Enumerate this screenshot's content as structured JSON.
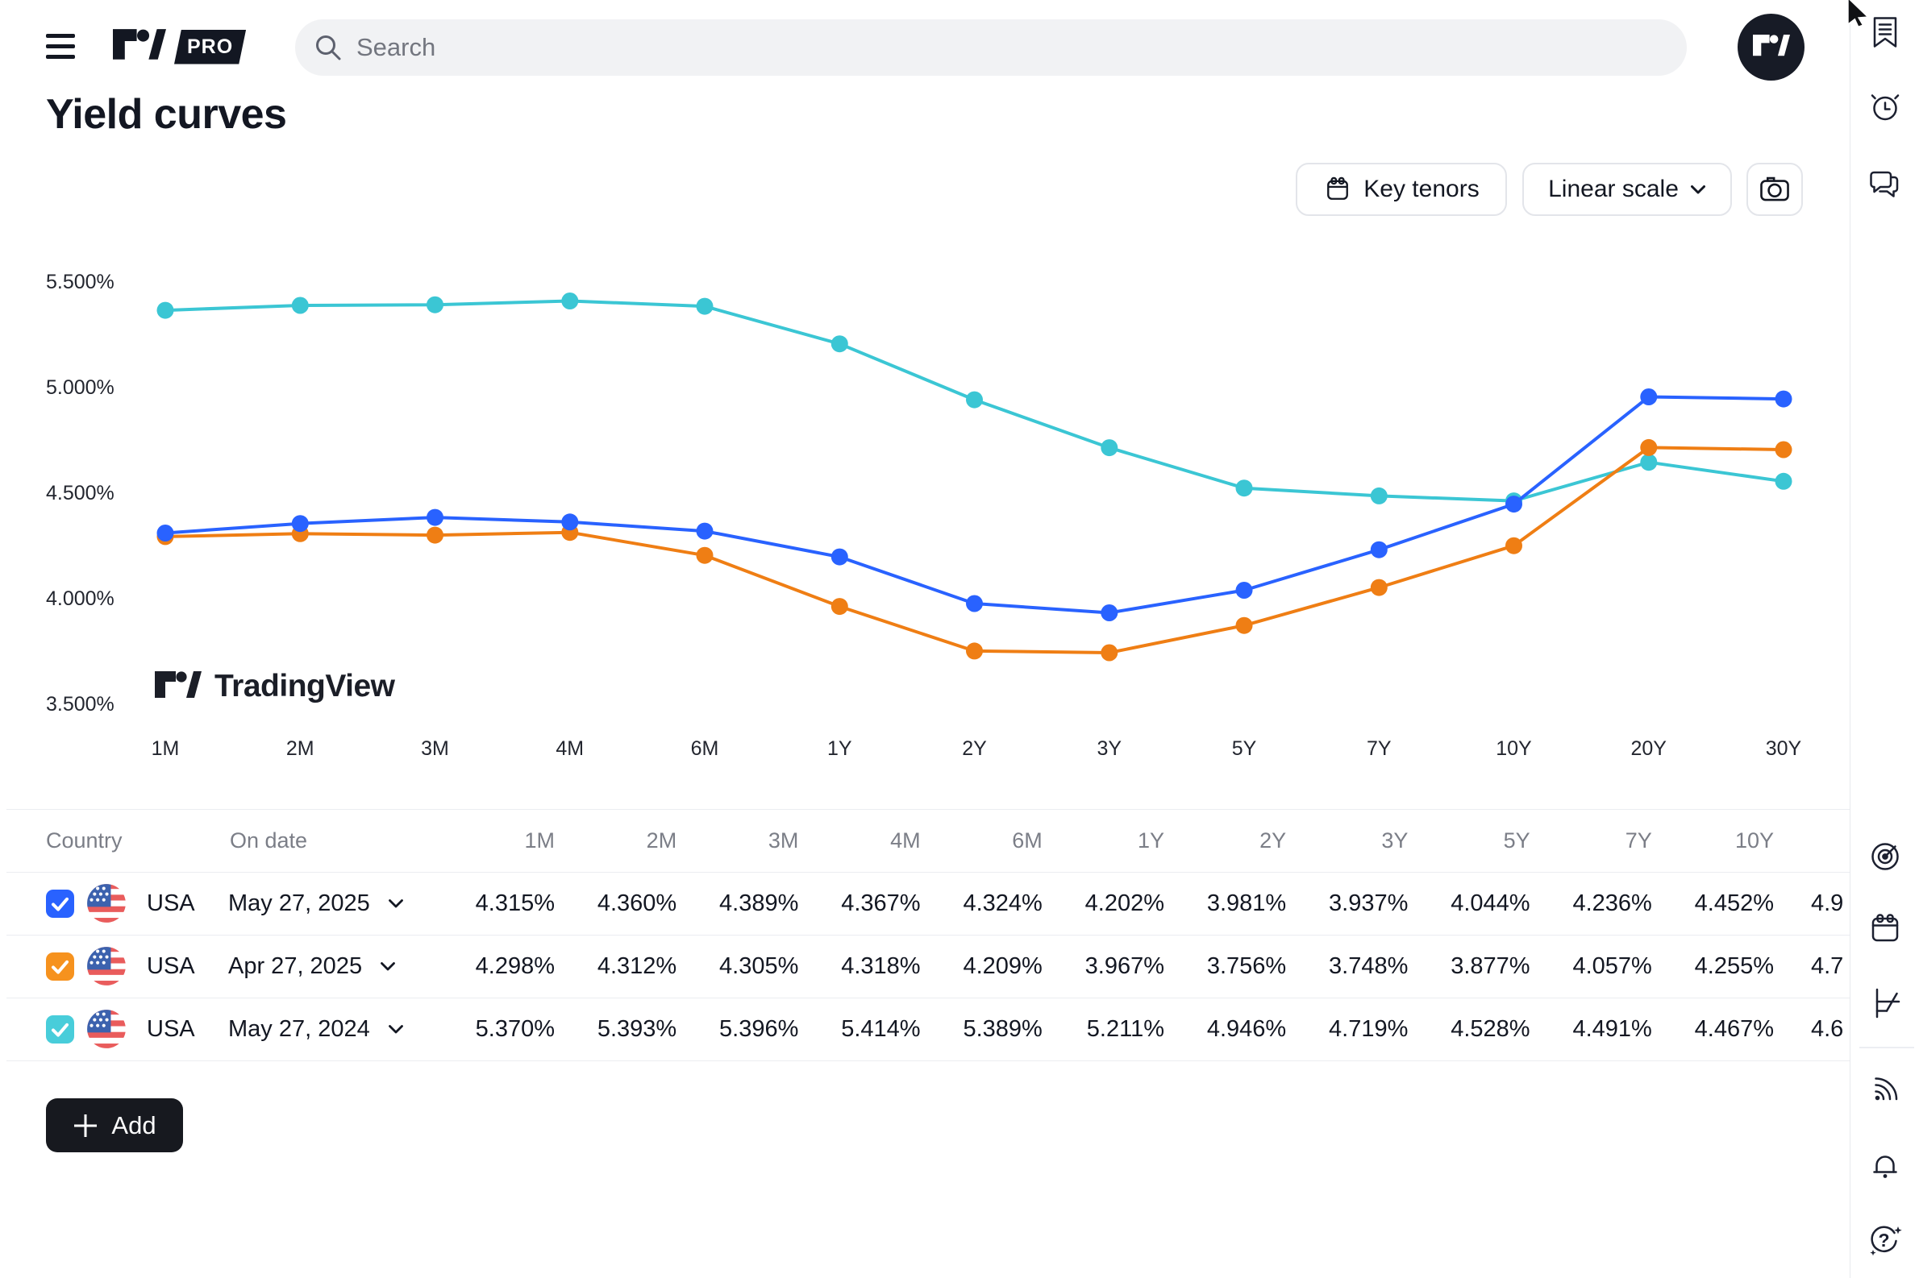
{
  "topbar": {
    "pro_label": "PRO",
    "search_placeholder": "Search"
  },
  "page": {
    "title": "Yield curves"
  },
  "toolbar": {
    "key_tenors_label": "Key tenors",
    "scale_selector_label": "Linear scale"
  },
  "watermark_text": "TradingView",
  "chart_data": {
    "type": "line",
    "title": "Yield curves",
    "xlabel": "",
    "ylabel": "",
    "categories": [
      "1M",
      "2M",
      "3M",
      "4M",
      "6M",
      "1Y",
      "2Y",
      "3Y",
      "5Y",
      "7Y",
      "10Y",
      "20Y",
      "30Y"
    ],
    "y_axis": {
      "tick_labels": [
        "5.500%",
        "5.000%",
        "4.500%",
        "4.000%",
        "3.500%"
      ],
      "tick_values": [
        5.5,
        5.0,
        4.5,
        4.0,
        3.5
      ],
      "unit": "%"
    },
    "ylim": [
      3.5,
      5.5
    ],
    "grid": false,
    "legend_position": "none",
    "series": [
      {
        "name": "USA May 27, 2025",
        "color": "#2962FF",
        "values": [
          4.315,
          4.36,
          4.389,
          4.367,
          4.324,
          4.202,
          3.981,
          3.937,
          4.044,
          4.236,
          4.452,
          4.96,
          4.95
        ]
      },
      {
        "name": "USA Apr 27, 2025",
        "color": "#EF7E14",
        "values": [
          4.298,
          4.312,
          4.305,
          4.318,
          4.209,
          3.967,
          3.756,
          3.748,
          3.877,
          4.057,
          4.255,
          4.72,
          4.71
        ]
      },
      {
        "name": "USA May 27, 2024",
        "color": "#3BC6D4",
        "values": [
          5.37,
          5.393,
          5.396,
          5.414,
          5.389,
          5.211,
          4.946,
          4.719,
          4.528,
          4.491,
          4.467,
          4.65,
          4.56
        ]
      }
    ]
  },
  "table": {
    "columns": [
      "Country",
      "On date",
      "1M",
      "2M",
      "3M",
      "4M",
      "6M",
      "1Y",
      "2Y",
      "3Y",
      "5Y",
      "7Y",
      "10Y"
    ],
    "rows": [
      {
        "checked": true,
        "checkbox_color": "#2962FF",
        "country": "USA",
        "date": "May 27, 2025",
        "values": [
          "4.315%",
          "4.360%",
          "4.389%",
          "4.367%",
          "4.324%",
          "4.202%",
          "3.981%",
          "3.937%",
          "4.044%",
          "4.236%",
          "4.452%"
        ],
        "clipped_value": "4.9"
      },
      {
        "checked": true,
        "checkbox_color": "#F6921E",
        "country": "USA",
        "date": "Apr 27, 2025",
        "values": [
          "4.298%",
          "4.312%",
          "4.305%",
          "4.318%",
          "4.209%",
          "3.967%",
          "3.756%",
          "3.748%",
          "3.877%",
          "4.057%",
          "4.255%"
        ],
        "clipped_value": "4.7"
      },
      {
        "checked": true,
        "checkbox_color": "#48CDDA",
        "country": "USA",
        "date": "May 27, 2024",
        "values": [
          "5.370%",
          "5.393%",
          "5.396%",
          "5.414%",
          "5.389%",
          "5.211%",
          "4.946%",
          "4.719%",
          "4.528%",
          "4.491%",
          "4.467%"
        ],
        "clipped_value": "4.6"
      }
    ],
    "add_button_label": "Add"
  },
  "sidebar": {
    "icons": [
      "watchlist-icon",
      "alarm-clock-icon",
      "chat-icon",
      "screener-radar-icon",
      "calendar-icon",
      "yield-curves-icon",
      "news-feed-icon",
      "notifications-bell-icon",
      "help-icon"
    ]
  }
}
